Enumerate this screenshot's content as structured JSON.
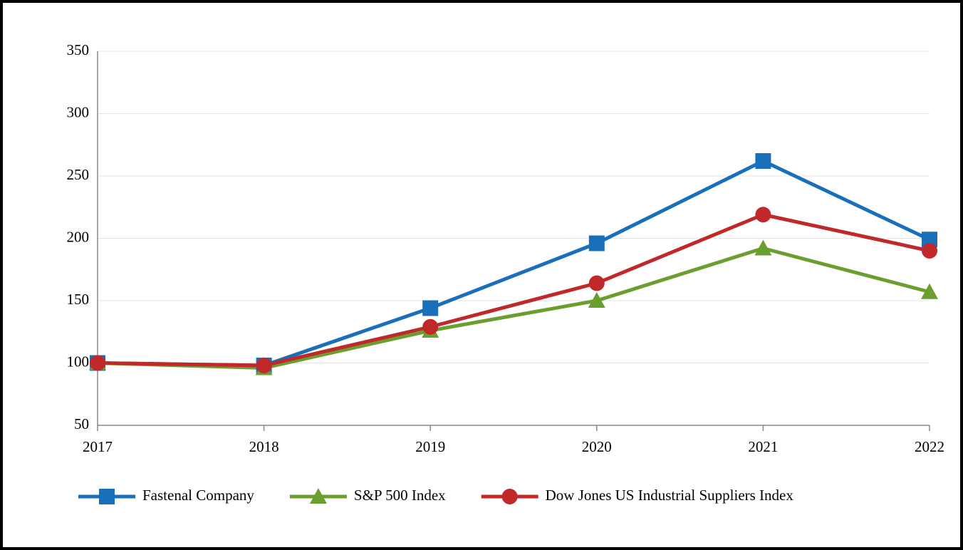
{
  "chart_data": {
    "type": "line",
    "categories": [
      "2017",
      "2018",
      "2019",
      "2020",
      "2021",
      "2022"
    ],
    "series": [
      {
        "name": "Fastenal Company",
        "color": "#1a6fba",
        "marker": "square",
        "values": [
          100,
          98,
          144,
          196,
          262,
          199
        ]
      },
      {
        "name": "S&P 500 Index",
        "color": "#6a9e2f",
        "marker": "triangle",
        "values": [
          100,
          96,
          126,
          150,
          192,
          157
        ]
      },
      {
        "name": "Dow Jones US Industrial Suppliers Index",
        "color": "#c0282a",
        "marker": "circle",
        "values": [
          100,
          98,
          129,
          164,
          219,
          190
        ]
      }
    ],
    "ylim": [
      50,
      350
    ],
    "yticks": [
      50,
      100,
      150,
      200,
      250,
      300,
      350
    ],
    "grid": true,
    "legend": "bottom"
  }
}
